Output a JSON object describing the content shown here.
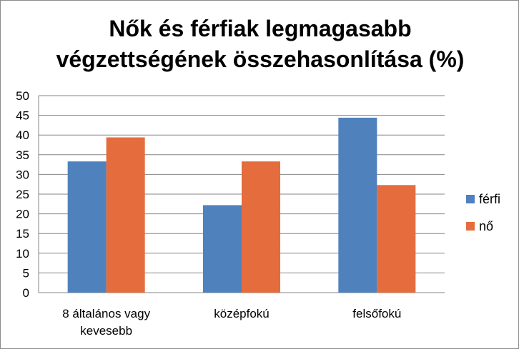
{
  "chart_data": {
    "type": "bar",
    "title_lines": [
      "Nők és férfiak legmagasabb",
      "végzettségének összehasonlítása (%)"
    ],
    "categories": [
      [
        "8 általános vagy",
        "kevesebb"
      ],
      [
        "középfokú"
      ],
      [
        "felsőfokú"
      ]
    ],
    "series": [
      {
        "name": "férfi",
        "color": "#4F81BD",
        "values": [
          33.3,
          22.2,
          44.4
        ]
      },
      {
        "name": "nő",
        "color": "#E46C3D",
        "values": [
          39.4,
          33.3,
          27.3
        ]
      }
    ],
    "ylim": [
      0,
      50
    ],
    "yticks": [
      "0",
      "5",
      "10",
      "15",
      "20",
      "25",
      "30",
      "35",
      "40",
      "45",
      "50"
    ],
    "grid": true,
    "legend_position": "right"
  }
}
